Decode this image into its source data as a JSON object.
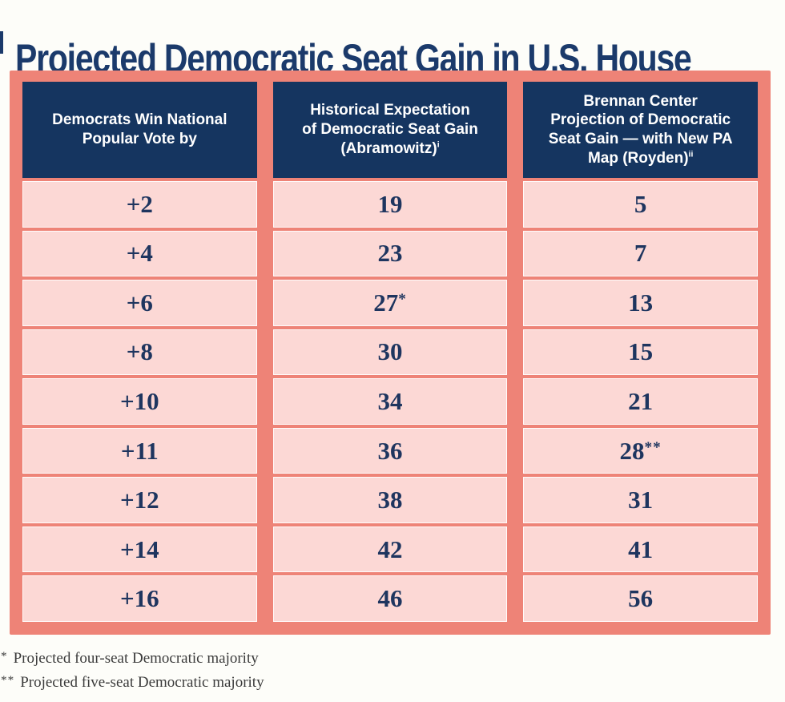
{
  "title": {
    "text": "Projected Democratic Seat Gain in U.S. House"
  },
  "colors": {
    "title_navy": "#1b3a6b",
    "frame_salmon": "#ee8377",
    "header_navy": "#153560",
    "cell_pink": "#fcd8d5",
    "value_navy": "#1e355f",
    "footnote_gray": "#3b3b3b",
    "page_background": "#fdfdf9"
  },
  "table": {
    "columns": [
      {
        "id": "margin",
        "header": "Democrats Win National\nPopular Vote by",
        "sup": ""
      },
      {
        "id": "abramowitz",
        "header": "Historical Expectation\nof Democratic Seat Gain\n(Abramowitz)",
        "sup": "i"
      },
      {
        "id": "brennan",
        "header": "Brennan Center\nProjection of Democratic\nSeat Gain — with New PA\nMap (Royden)",
        "sup": "ii"
      }
    ],
    "rows": [
      {
        "margin": "+2",
        "abramowitz": "19",
        "abramowitz_note": "",
        "brennan": "5",
        "brennan_note": ""
      },
      {
        "margin": "+4",
        "abramowitz": "23",
        "abramowitz_note": "",
        "brennan": "7",
        "brennan_note": ""
      },
      {
        "margin": "+6",
        "abramowitz": "27",
        "abramowitz_note": "*",
        "brennan": "13",
        "brennan_note": ""
      },
      {
        "margin": "+8",
        "abramowitz": "30",
        "abramowitz_note": "",
        "brennan": "15",
        "brennan_note": ""
      },
      {
        "margin": "+10",
        "abramowitz": "34",
        "abramowitz_note": "",
        "brennan": "21",
        "brennan_note": ""
      },
      {
        "margin": "+11",
        "abramowitz": "36",
        "abramowitz_note": "",
        "brennan": "28",
        "brennan_note": "**"
      },
      {
        "margin": "+12",
        "abramowitz": "38",
        "abramowitz_note": "",
        "brennan": "31",
        "brennan_note": ""
      },
      {
        "margin": "+14",
        "abramowitz": "42",
        "abramowitz_note": "",
        "brennan": "41",
        "brennan_note": ""
      },
      {
        "margin": "+16",
        "abramowitz": "46",
        "abramowitz_note": "",
        "brennan": "56",
        "brennan_note": ""
      }
    ]
  },
  "footnotes": [
    {
      "marker": "*",
      "text": "Projected four-seat Democratic majority"
    },
    {
      "marker": "**",
      "text": "Projected five-seat Democratic majority"
    }
  ],
  "chart_data": {
    "type": "table",
    "title": "Projected Democratic Seat Gain in U.S. House",
    "columns": [
      "Democrats Win National Popular Vote by",
      "Historical Expectation of Democratic Seat Gain (Abramowitz)",
      "Brennan Center Projection of Democratic Seat Gain — with New PA Map (Royden)"
    ],
    "rows": [
      [
        "+2",
        19,
        5
      ],
      [
        "+4",
        23,
        7
      ],
      [
        "+6",
        "27*",
        13
      ],
      [
        "+8",
        30,
        15
      ],
      [
        "+10",
        34,
        21
      ],
      [
        "+11",
        36,
        "28**"
      ],
      [
        "+12",
        38,
        31
      ],
      [
        "+14",
        42,
        41
      ],
      [
        "+16",
        46,
        56
      ]
    ],
    "footnotes": [
      "* Projected four-seat Democratic majority",
      "** Projected five-seat Democratic majority"
    ]
  }
}
